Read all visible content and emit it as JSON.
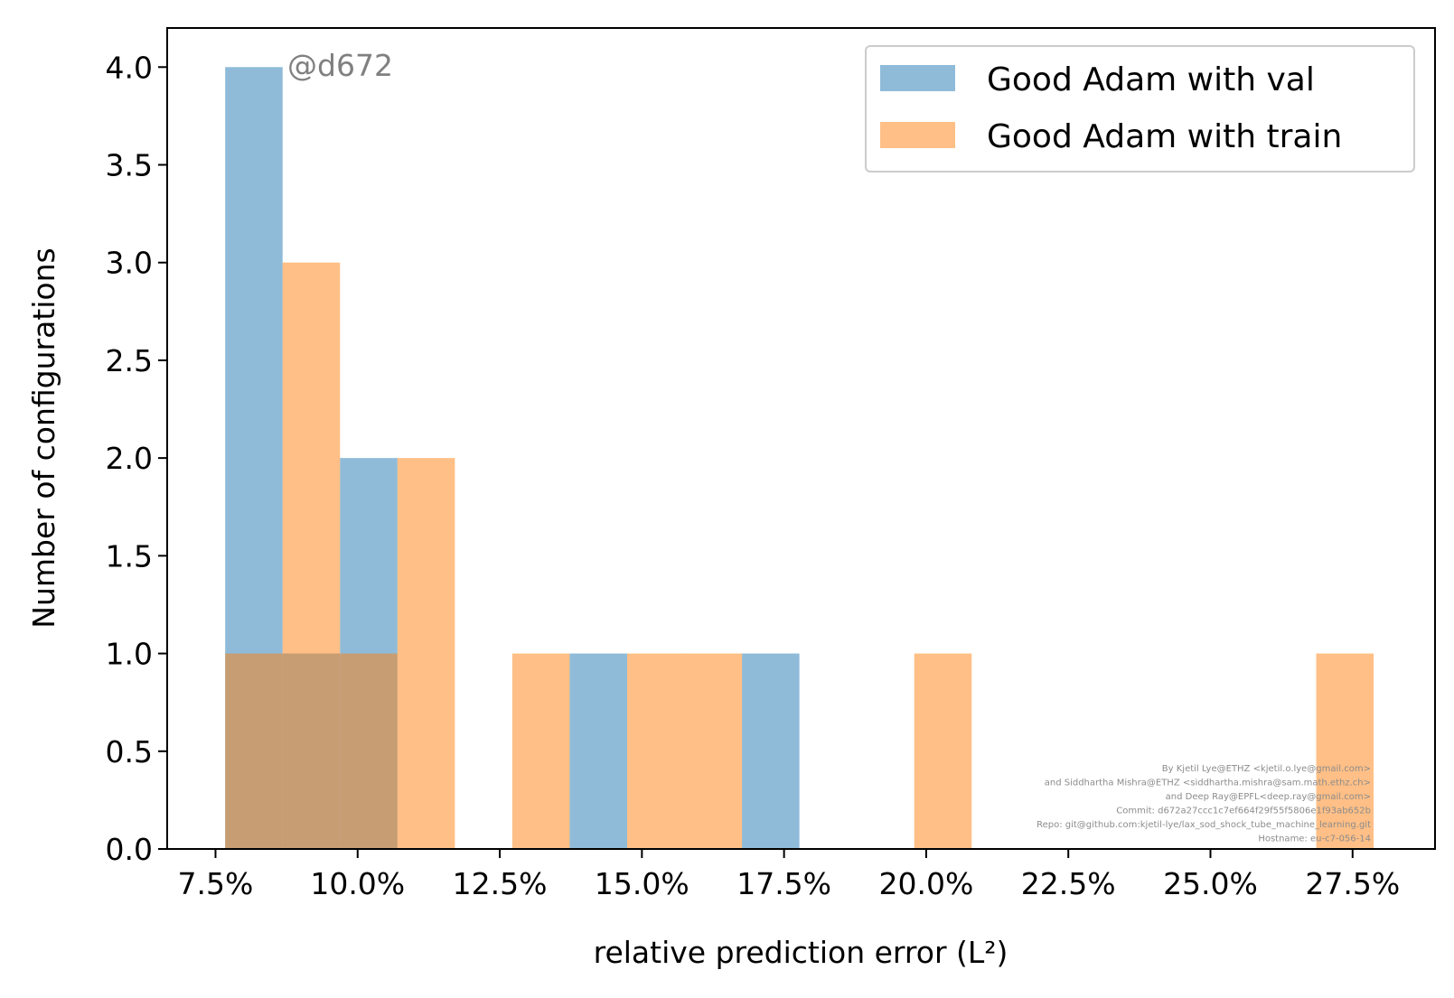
{
  "chart_data": {
    "type": "bar",
    "subtype": "histogram",
    "xlabel": "relative prediction error (L²)",
    "ylabel": "Number of configurations",
    "xlim": [
      0.0665,
      0.2895
    ],
    "ylim": [
      0,
      4.2
    ],
    "x_ticks": [
      0.075,
      0.1,
      0.125,
      0.15,
      0.175,
      0.2,
      0.225,
      0.25,
      0.275
    ],
    "x_tick_labels": [
      "7.5%",
      "10.0%",
      "12.5%",
      "15.0%",
      "17.5%",
      "20.0%",
      "22.5%",
      "25.0%",
      "27.5%"
    ],
    "y_ticks": [
      0,
      0.5,
      1,
      1.5,
      2,
      2.5,
      3,
      3.5,
      4
    ],
    "y_tick_labels": [
      "0.0",
      "0.5",
      "1.0",
      "1.5",
      "2.0",
      "2.5",
      "3.0",
      "3.5",
      "4.0"
    ],
    "grid": false,
    "legend_position": "top-right",
    "series": [
      {
        "name": "Good Adam with val",
        "color": "#1f77b4",
        "opacity": 0.5,
        "bins": [
          {
            "x0": 0.0767,
            "x1": 0.0868,
            "count": 4
          },
          {
            "x0": 0.0868,
            "x1": 0.0969,
            "count": 1
          },
          {
            "x0": 0.0969,
            "x1": 0.107,
            "count": 2
          },
          {
            "x0": 0.1373,
            "x1": 0.1474,
            "count": 1
          },
          {
            "x0": 0.1676,
            "x1": 0.1777,
            "count": 1
          }
        ]
      },
      {
        "name": "Good Adam with train",
        "color": "#ff7f0e",
        "opacity": 0.5,
        "bins": [
          {
            "x0": 0.0767,
            "x1": 0.0868,
            "count": 1
          },
          {
            "x0": 0.0868,
            "x1": 0.0969,
            "count": 3
          },
          {
            "x0": 0.0969,
            "x1": 0.107,
            "count": 1
          },
          {
            "x0": 0.107,
            "x1": 0.1171,
            "count": 2
          },
          {
            "x0": 0.1272,
            "x1": 0.1373,
            "count": 1
          },
          {
            "x0": 0.1474,
            "x1": 0.1575,
            "count": 1
          },
          {
            "x0": 0.1575,
            "x1": 0.1676,
            "count": 1
          },
          {
            "x0": 0.1979,
            "x1": 0.208,
            "count": 1
          },
          {
            "x0": 0.2686,
            "x1": 0.2787,
            "count": 1
          }
        ]
      }
    ],
    "annotation": "@d672",
    "credits": [
      "By Kjetil Lye@ETHZ <kjetil.o.lye@gmail.com>",
      "and Siddhartha Mishra@ETHZ <siddhartha.mishra@sam.math.ethz.ch>",
      "and Deep Ray@EPFL<deep.ray@gmail.com>",
      "Commit: d672a27ccc1c7ef664f29f55f5806e1f93ab652b",
      "Repo: git@github.com:kjetil-lye/lax_sod_shock_tube_machine_learning.git",
      "Hostname: eu-c7-056-14"
    ]
  }
}
